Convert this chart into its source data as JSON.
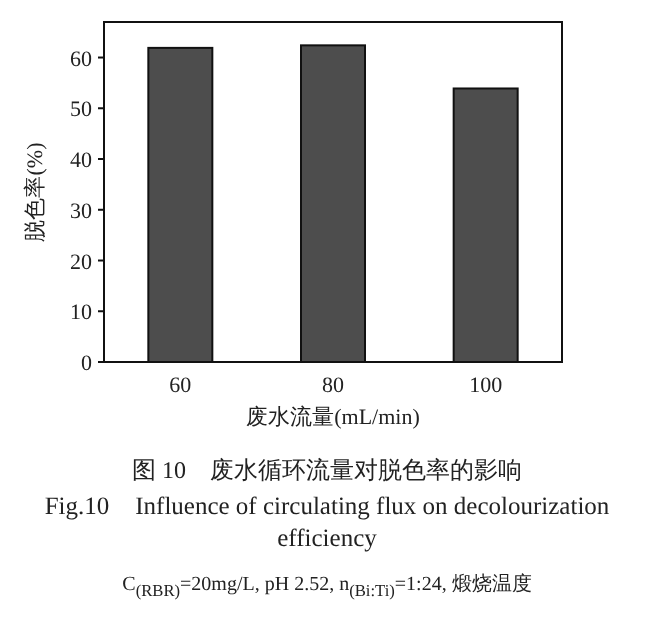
{
  "chart_data": {
    "type": "bar",
    "title": "图 10　废水循环流量对脱色率的影响",
    "subtitle": "Fig.10　Influence of circulating flux on decolourization efficiency",
    "annotations": [
      "C$_{(RBR)}$=20mg/L, pH 2.52, n$_{(Bi:Ti)}$=1:24, 煅烧温度"
    ],
    "xlabel": "废水流量(mL/min)",
    "ylabel": "脱色率(%)",
    "categories": [
      "60",
      "80",
      "100"
    ],
    "values": [
      61.9,
      62.4,
      53.9
    ],
    "color": "#4d4d4d",
    "ylim": [
      0,
      67
    ],
    "yticks": [
      0,
      10,
      20,
      30,
      40,
      50,
      60
    ],
    "grid": false
  }
}
